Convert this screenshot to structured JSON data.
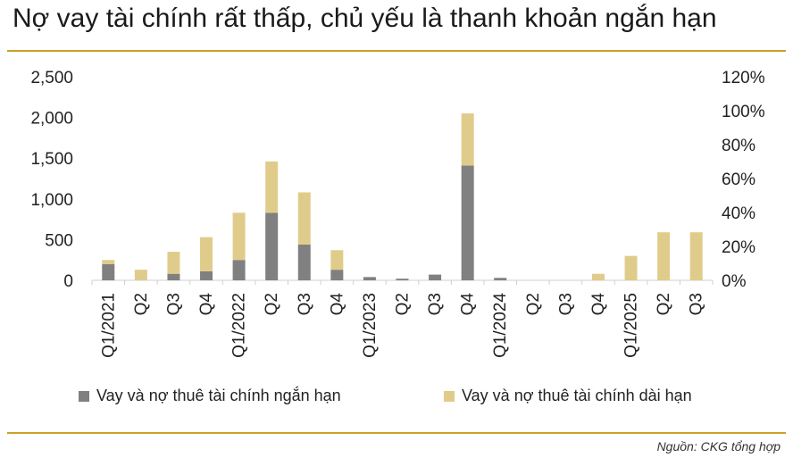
{
  "title": "Nợ vay tài chính rất thấp, chủ yếu là thanh khoản ngắn hạn",
  "source": "Nguồn: CKG tổng hợp",
  "colors": {
    "short_term": "#808080",
    "long_term": "#e0cc8a",
    "rule": "#c9a227",
    "axis_text": "#222222"
  },
  "chart_data": {
    "type": "bar",
    "stacked": true,
    "categories": [
      "Q1/2021",
      "Q2",
      "Q3",
      "Q4",
      "Q1/2022",
      "Q2",
      "Q3",
      "Q4",
      "Q1/2023",
      "Q2",
      "Q3",
      "Q4",
      "Q1/2024",
      "Q2",
      "Q3",
      "Q4",
      "Q1/2025",
      "Q2",
      "Q3"
    ],
    "series": [
      {
        "name": "Vay và nợ thuê tài chính ngắn hạn",
        "values": [
          200,
          0,
          80,
          110,
          250,
          830,
          440,
          130,
          40,
          20,
          70,
          1410,
          30,
          0,
          0,
          0,
          0,
          0,
          0
        ]
      },
      {
        "name": "Vay và nợ thuê tài chính dài hạn",
        "values": [
          50,
          130,
          270,
          420,
          580,
          630,
          640,
          240,
          0,
          0,
          0,
          640,
          0,
          0,
          0,
          80,
          300,
          590,
          590
        ]
      }
    ],
    "y_left": {
      "min": 0,
      "max": 2500,
      "ticks": [
        "0",
        "500",
        "1,000",
        "1,500",
        "2,000",
        "2,500"
      ]
    },
    "y_right": {
      "min": 0,
      "max": 120,
      "ticks": [
        "0%",
        "20%",
        "40%",
        "60%",
        "80%",
        "100%",
        "120%"
      ]
    },
    "grid": false,
    "legend_position": "bottom"
  }
}
